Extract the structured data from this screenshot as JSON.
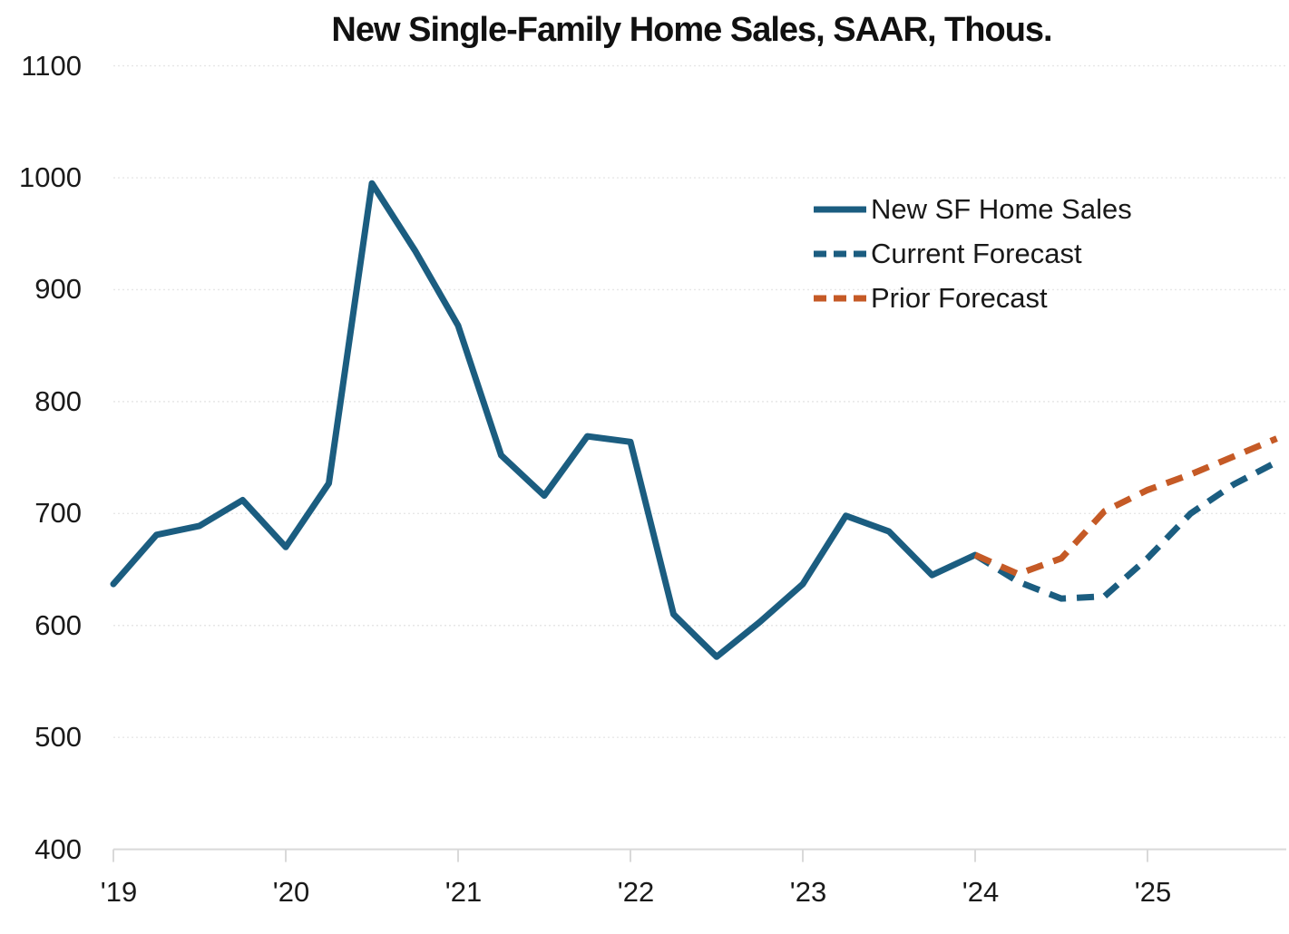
{
  "chart_data": {
    "type": "line",
    "title": "New Single-Family Home Sales, SAAR, Thous.",
    "x_unit": "quarter",
    "categories": [
      "2019Q1",
      "2019Q2",
      "2019Q3",
      "2019Q4",
      "2020Q1",
      "2020Q2",
      "2020Q3",
      "2020Q4",
      "2021Q1",
      "2021Q2",
      "2021Q3",
      "2021Q4",
      "2022Q1",
      "2022Q2",
      "2022Q3",
      "2022Q4",
      "2023Q1",
      "2023Q2",
      "2023Q3",
      "2023Q4",
      "2024Q1",
      "2024Q2",
      "2024Q3",
      "2024Q4",
      "2025Q1",
      "2025Q2",
      "2025Q3",
      "2025Q4"
    ],
    "xtick_labels": [
      "'19",
      "'20",
      "'21",
      "'22",
      "'23",
      "'24",
      "'25"
    ],
    "xtick_category_indices": [
      0,
      4,
      8,
      12,
      16,
      20,
      24
    ],
    "ytick_values": [
      400,
      500,
      600,
      700,
      800,
      900,
      1000,
      1100
    ],
    "ylim": [
      400,
      1100
    ],
    "grid": "horizontal-dotted",
    "legend_position": "upper-right-inside",
    "series": [
      {
        "name": "New SF Home Sales",
        "style": "solid",
        "color": "#1b5d80",
        "start_index": 0,
        "values": [
          637,
          681,
          689,
          712,
          670,
          727,
          995,
          935,
          868,
          752,
          716,
          769,
          764,
          610,
          572,
          603,
          637,
          698,
          684,
          645,
          663
        ]
      },
      {
        "name": "Current Forecast",
        "style": "dashed",
        "color": "#1b5d80",
        "start_index": 20,
        "values": [
          663,
          639,
          624,
          626,
          660,
          700,
          726,
          746
        ]
      },
      {
        "name": "Prior Forecast",
        "style": "dashed",
        "color": "#c55a26",
        "start_index": 20,
        "values": [
          663,
          646,
          660,
          702,
          721,
          735,
          751,
          767
        ]
      }
    ],
    "colors": {
      "axis": "#d9d9d9",
      "gridline": "#e7e7e7",
      "text": "#1a1a1a"
    }
  }
}
